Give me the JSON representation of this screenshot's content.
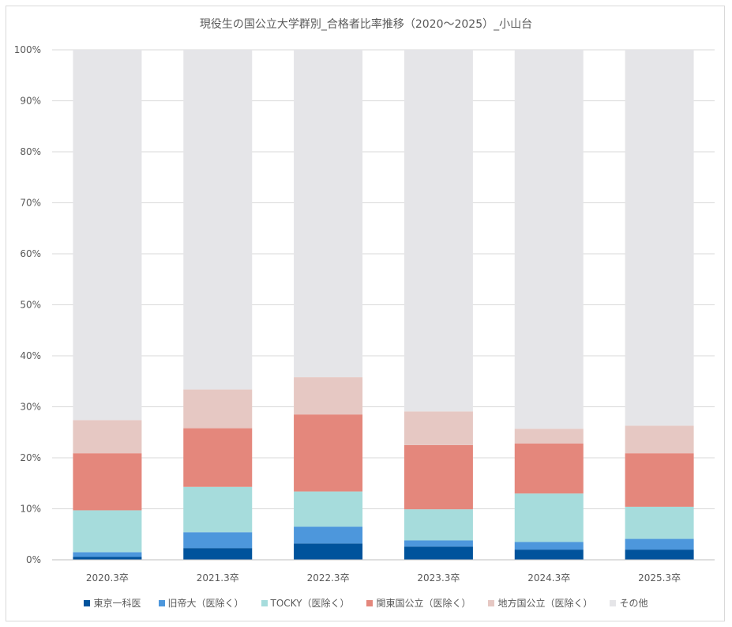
{
  "chart_data": {
    "type": "bar",
    "stacked": true,
    "title": "現役生の国公立大学群別_合格者比率推移（2020～2025）_小山台",
    "categories": [
      "2020.3卒",
      "2021.3卒",
      "2022.3卒",
      "2023.3卒",
      "2024.3卒",
      "2025.3卒"
    ],
    "ylim": [
      0,
      100
    ],
    "yticks": [
      "0%",
      "10%",
      "20%",
      "30%",
      "40%",
      "50%",
      "60%",
      "70%",
      "80%",
      "90%",
      "100%"
    ],
    "grid": true,
    "legend_position": "bottom",
    "series": [
      {
        "name": "東京一科医",
        "color": "#00539c",
        "values": [
          0.6,
          2.3,
          3.2,
          2.6,
          2.0,
          2.0
        ]
      },
      {
        "name": "旧帝大（医除く）",
        "color": "#4d97dc",
        "values": [
          0.9,
          3.1,
          3.3,
          1.2,
          1.5,
          2.1
        ]
      },
      {
        "name": "TOCKY（医除く）",
        "color": "#a6dcdc",
        "values": [
          8.2,
          8.9,
          6.9,
          6.1,
          9.5,
          6.3
        ]
      },
      {
        "name": "関東国公立（医除く）",
        "color": "#e4877c",
        "values": [
          11.2,
          11.5,
          15.1,
          12.6,
          9.8,
          10.5
        ]
      },
      {
        "name": "地方国公立（医除く）",
        "color": "#e6c8c3",
        "values": [
          6.5,
          7.6,
          7.3,
          6.6,
          2.9,
          5.4
        ]
      },
      {
        "name": "その他",
        "color": "#e5e5e8",
        "values": [
          72.6,
          66.6,
          64.2,
          70.9,
          74.3,
          73.7
        ]
      }
    ]
  }
}
